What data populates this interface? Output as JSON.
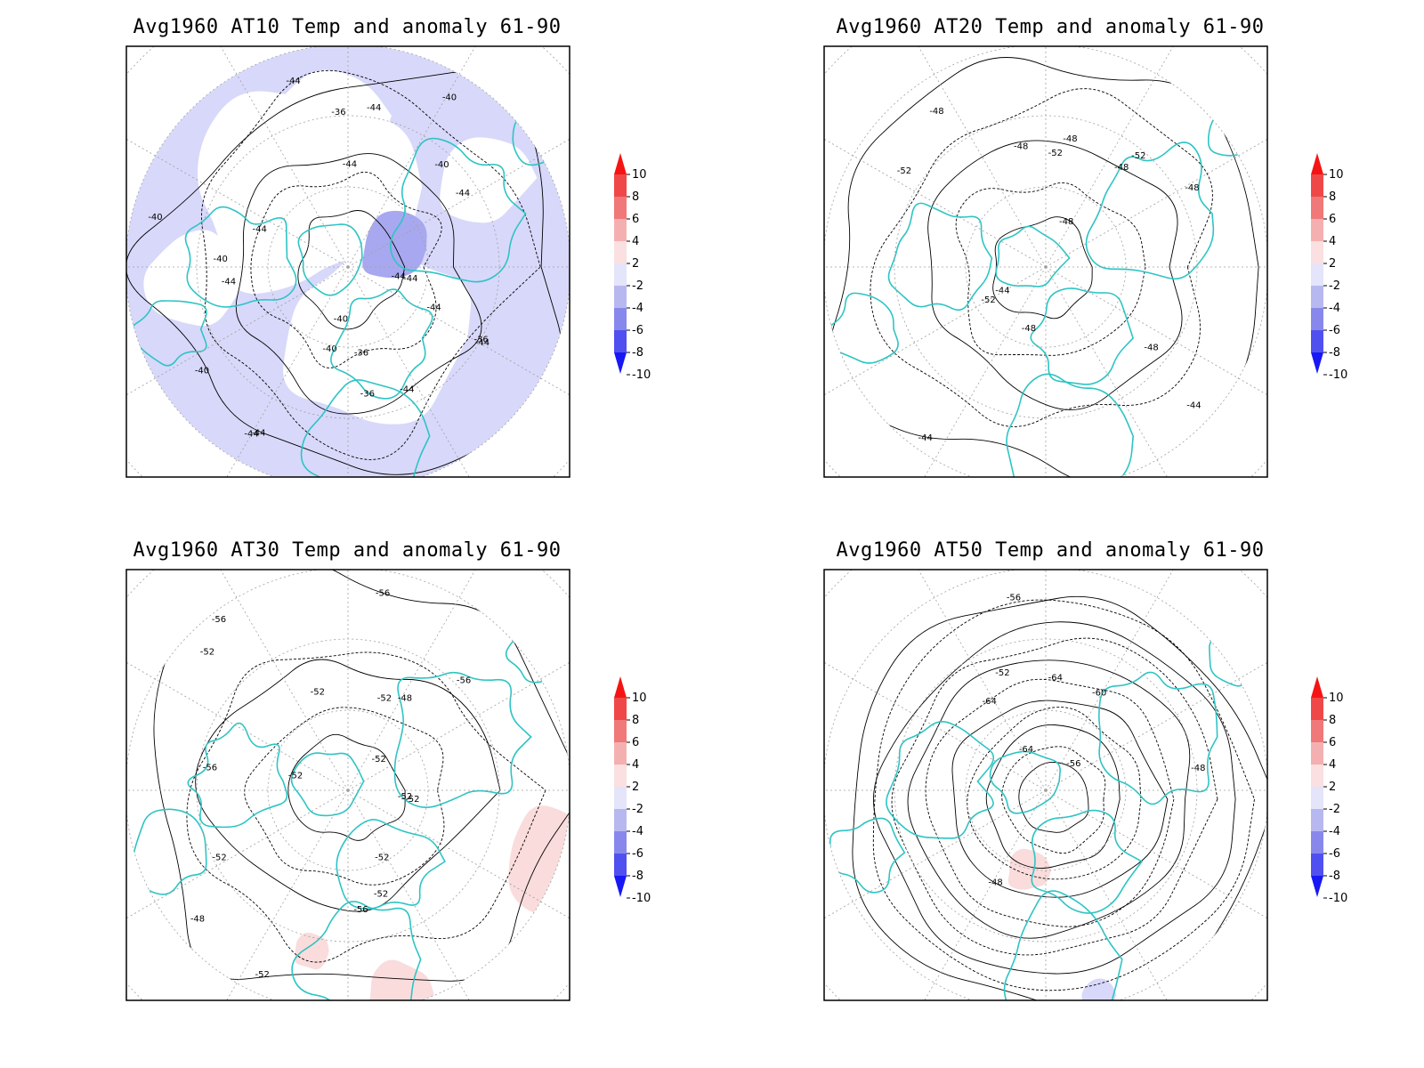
{
  "panels": [
    {
      "title": "Avg1960 AT10 Temp and anomaly 61-90",
      "contour_labels": [
        "-44",
        "-40",
        "-44",
        "-44",
        "-44",
        "-44",
        "-40",
        "-36",
        "-40",
        "-40",
        "-36",
        "-36",
        "-36",
        "-44",
        "-40",
        "-40",
        "-44",
        "-44",
        "-44",
        "-44",
        "-44",
        "-44",
        "-44",
        "-40"
      ],
      "anomaly_level": "negative"
    },
    {
      "title": "Avg1960 AT20 Temp and anomaly 61-90",
      "contour_labels": [
        "-48",
        "-48",
        "-44",
        "-44",
        "-44",
        "-48",
        "-48",
        "-52",
        "-52",
        "-48",
        "-48",
        "-52",
        "-52",
        "-48",
        "-48"
      ],
      "anomaly_level": "neutral"
    },
    {
      "title": "Avg1960 AT30 Temp and anomaly 61-90",
      "contour_labels": [
        "-56",
        "-56",
        "-56",
        "-52",
        "-56",
        "-48",
        "-52",
        "-52",
        "-52",
        "-52",
        "-48",
        "-52",
        "-52",
        "-52",
        "-52",
        "-52",
        "-52",
        "-56"
      ],
      "anomaly_level": "slight-positive"
    },
    {
      "title": "Avg1960 AT50 Temp and anomaly 61-90",
      "contour_labels": [
        "-56",
        "-48",
        "-48",
        "-52",
        "-56",
        "-60",
        "-64",
        "-64",
        "-64"
      ],
      "anomaly_level": "neutral"
    }
  ],
  "colorbar": {
    "labels": [
      "10",
      "8",
      "6",
      "4",
      "2",
      "-2",
      "-4",
      "-6",
      "-8",
      "-10"
    ],
    "colors": [
      "#f51414",
      "#f04848",
      "#f07878",
      "#f4b0b0",
      "#fae0e0",
      "#e4e4fa",
      "#b8b8f0",
      "#8888ec",
      "#5050f0",
      "#1818f4"
    ]
  },
  "colors": {
    "coastline": "#2ec4c4",
    "contour": "#000000",
    "grid": "#a0a0a0",
    "neg_anomaly": "#d8d8fa",
    "neg_anomaly_strong": "#a8a8f0",
    "pos_anomaly": "#fadcdc"
  }
}
